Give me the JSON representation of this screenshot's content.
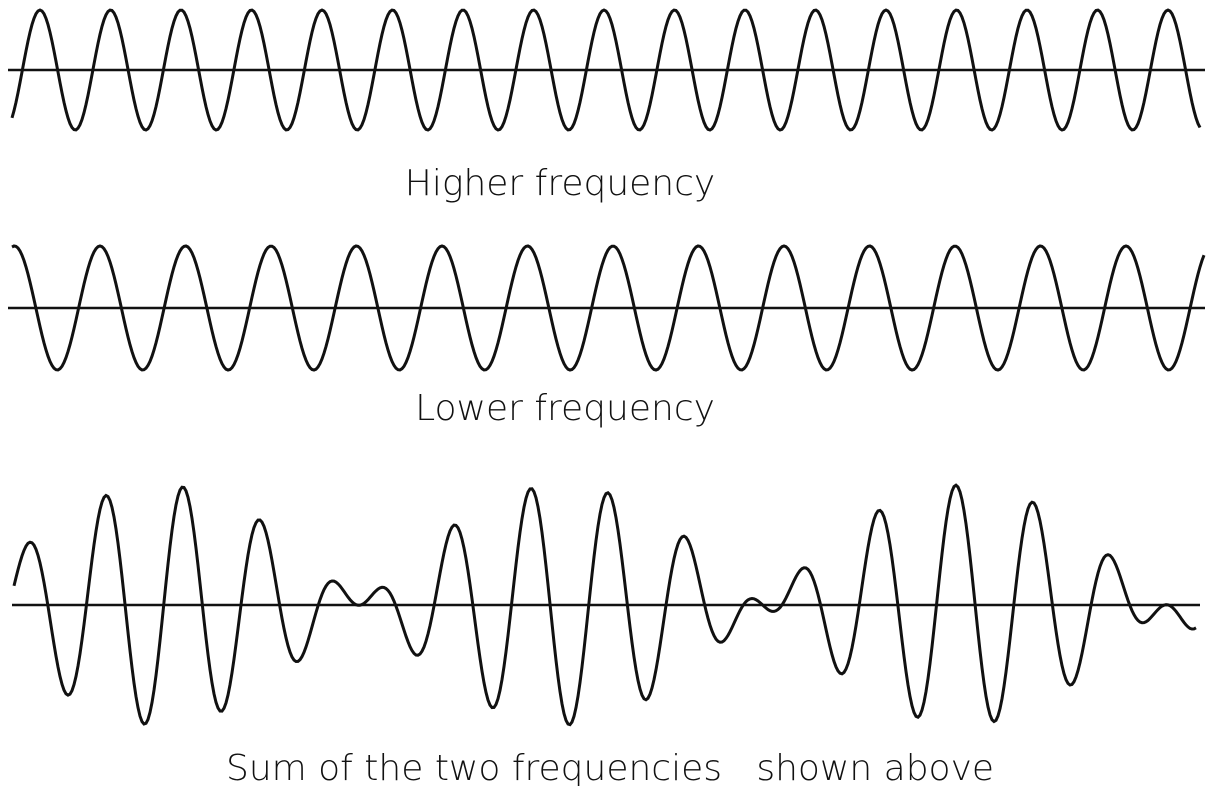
{
  "labels": {
    "higher": "Higher frequency",
    "lower": "Lower frequency",
    "sum": "Sum of the two frequencies   shown above"
  }
}
